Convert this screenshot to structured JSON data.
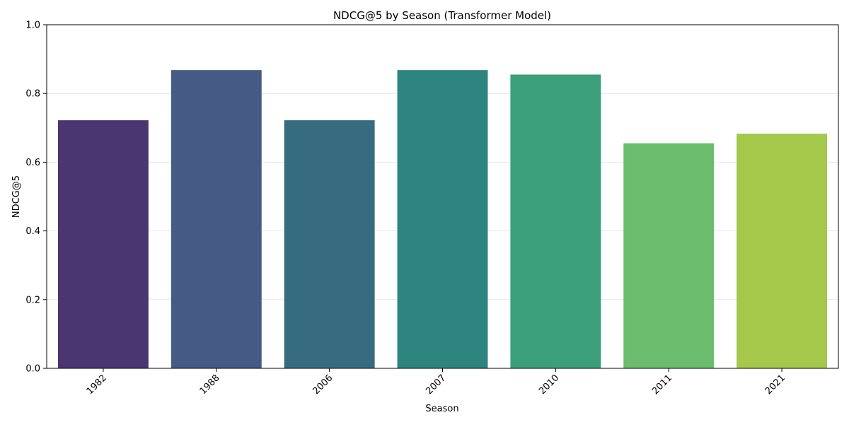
{
  "chart_data": {
    "type": "bar",
    "title": "NDCG@5 by Season (Transformer Model)",
    "xlabel": "Season",
    "ylabel": "NDCG@5",
    "categories": [
      "1982",
      "1988",
      "2006",
      "2007",
      "2010",
      "2011",
      "2021"
    ],
    "values": [
      0.722,
      0.868,
      0.722,
      0.868,
      0.855,
      0.655,
      0.683
    ],
    "colors": [
      "#4a3670",
      "#455a85",
      "#376b7f",
      "#2e847e",
      "#3a9f7a",
      "#6bbc6c",
      "#a3c84a"
    ],
    "ylim": [
      0,
      1.0
    ],
    "yticks": [
      "0.0",
      "0.2",
      "0.4",
      "0.6",
      "0.8",
      "1.0"
    ],
    "grid": "horizontal",
    "legend": "none"
  }
}
